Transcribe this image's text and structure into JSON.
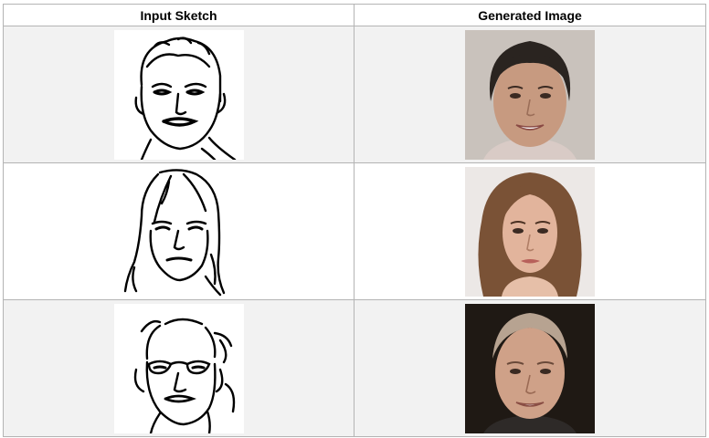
{
  "table": {
    "headers": [
      "Input Sketch",
      "Generated Image"
    ],
    "rows": [
      {
        "sketch": "sketch-face-1",
        "generated": "photo-face-1"
      },
      {
        "sketch": "sketch-face-2",
        "generated": "photo-face-2"
      },
      {
        "sketch": "sketch-face-3",
        "generated": "photo-face-3"
      }
    ]
  },
  "colors": {
    "border": "#b4b4b4",
    "row_shade": "#f2f2f2",
    "photo1_bg": "#c9c2bc",
    "photo2_bg": "#ece8e6",
    "photo3_bg": "#1f1914"
  }
}
